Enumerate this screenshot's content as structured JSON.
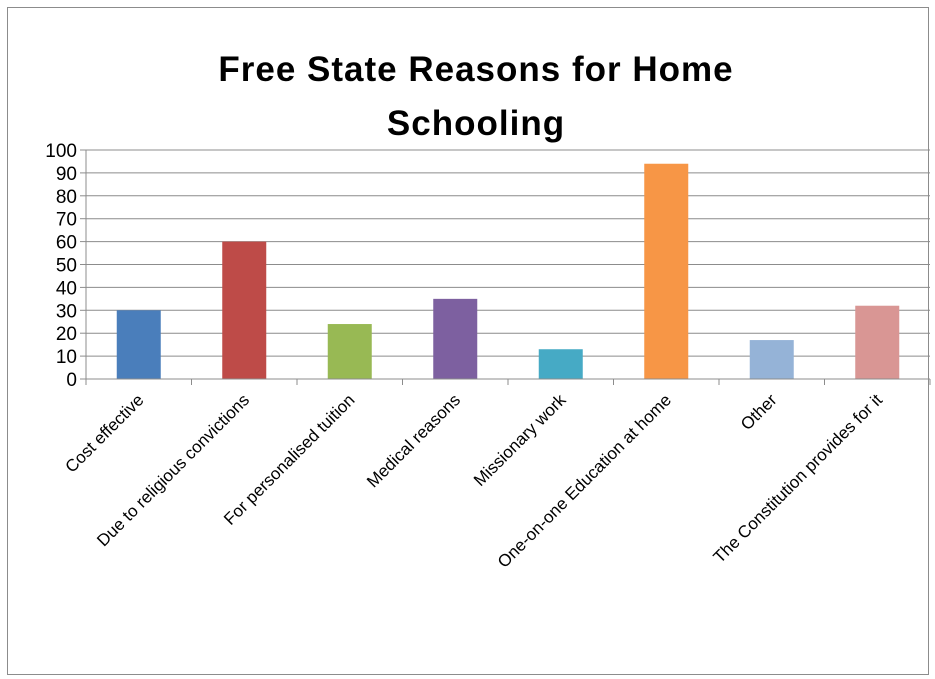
{
  "chart_data": {
    "type": "bar",
    "title_lines": [
      "Free State Reasons for Home",
      "Schooling"
    ],
    "categories": [
      "Cost effective",
      "Due to religious convictions",
      "For personalised tuition",
      "Medical reasons",
      "Missionary work",
      "One-on-one Education at home",
      "Other",
      "The Constitution provides for it"
    ],
    "values": [
      30,
      60,
      24,
      35,
      13,
      94,
      17,
      32
    ],
    "colors": [
      "#4a7ebb",
      "#be4b48",
      "#98b954",
      "#7d60a0",
      "#46aac5",
      "#f79646",
      "#95b3d7",
      "#d99694"
    ],
    "ylim": [
      0,
      100
    ],
    "yticks": [
      "0",
      "10",
      "20",
      "30",
      "40",
      "50",
      "60",
      "70",
      "80",
      "90",
      "100"
    ],
    "grid": true,
    "legend": "none"
  }
}
